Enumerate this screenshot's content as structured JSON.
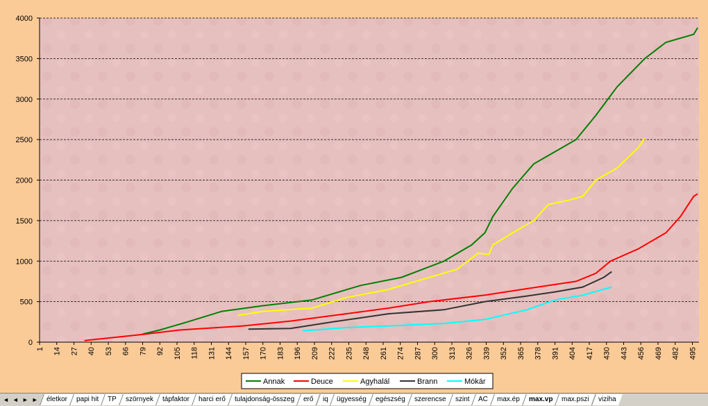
{
  "chart_data": {
    "type": "line",
    "xlim": [
      1,
      500
    ],
    "xticks": [
      1,
      14,
      27,
      40,
      53,
      66,
      79,
      92,
      105,
      118,
      131,
      144,
      157,
      170,
      183,
      196,
      209,
      222,
      235,
      248,
      261,
      274,
      287,
      300,
      313,
      326,
      339,
      352,
      365,
      378,
      391,
      404,
      417,
      430,
      443,
      456,
      469,
      482,
      495
    ],
    "ylim": [
      0,
      4000
    ],
    "yticks": [
      0,
      500,
      1000,
      1500,
      2000,
      2500,
      3000,
      3500,
      4000
    ],
    "grid": true,
    "legend": "bottom",
    "series": [
      {
        "name": "Annak",
        "color": "#008000",
        "x": [
          79,
          92,
          113,
          139,
          170,
          207,
          244,
          275,
          307,
          328,
          338,
          344,
          359,
          375,
          391,
          407,
          422,
          438,
          459,
          475,
          496,
          499
        ],
        "values": [
          100,
          150,
          250,
          380,
          450,
          520,
          700,
          800,
          1000,
          1200,
          1350,
          1550,
          1900,
          2200,
          2350,
          2500,
          2800,
          3150,
          3500,
          3700,
          3800,
          3880
        ]
      },
      {
        "name": "Deuce",
        "color": "#ff0000",
        "x": [
          35,
          76,
          107,
          155,
          191,
          233,
          265,
          296,
          338,
          370,
          407,
          422,
          433,
          454,
          475,
          486,
          496,
          499
        ],
        "values": [
          20,
          90,
          150,
          200,
          260,
          350,
          420,
          500,
          580,
          660,
          750,
          850,
          1000,
          1150,
          1350,
          1550,
          1800,
          1830
        ]
      },
      {
        "name": "Agyhalál",
        "color": "#ffff00",
        "x": [
          151,
          170,
          207,
          233,
          265,
          296,
          317,
          333,
          341,
          344,
          359,
          375,
          386,
          401,
          412,
          422,
          438,
          454,
          459
        ],
        "values": [
          330,
          380,
          420,
          550,
          650,
          800,
          900,
          1100,
          1080,
          1200,
          1350,
          1500,
          1700,
          1750,
          1800,
          2000,
          2150,
          2400,
          2520
        ]
      },
      {
        "name": "Brann",
        "color": "#333333",
        "x": [
          159,
          191,
          223,
          244,
          265,
          307,
          338,
          370,
          391,
          412,
          428,
          434
        ],
        "values": [
          160,
          170,
          250,
          300,
          350,
          400,
          500,
          570,
          620,
          680,
          800,
          870
        ]
      },
      {
        "name": "Mókár",
        "color": "#00ffff",
        "x": [
          200,
          233,
          265,
          307,
          338,
          370,
          391,
          412,
          434
        ],
        "values": [
          140,
          180,
          200,
          230,
          280,
          400,
          520,
          580,
          680
        ]
      }
    ]
  },
  "tabs": [
    "életkor",
    "papi hit",
    "TP",
    "szörnyek",
    "tápfaktor",
    "harci erő",
    "tulajdonság-összeg",
    "erő",
    "iq",
    "ügyesség",
    "egészség",
    "szerencse",
    "szint",
    "AC",
    "max.ép",
    "max.vp",
    "max.pszi",
    "viziha"
  ],
  "active_tab": 15
}
